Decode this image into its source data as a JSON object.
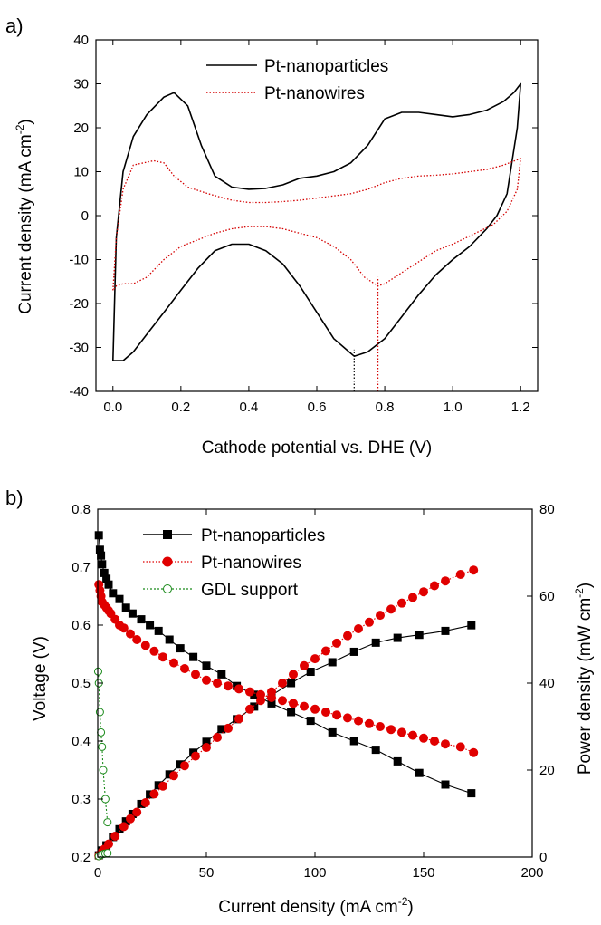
{
  "chart_data": [
    {
      "type": "line",
      "panel_label": "a)",
      "xlabel": "Cathode potential vs. DHE (V)",
      "ylabel": "Current density (mA cm",
      "ylabel_sup": "-2",
      "ylabel_end": ")",
      "xlim": [
        -0.05,
        1.25
      ],
      "ylim": [
        -40,
        40
      ],
      "xticks": [
        0.0,
        0.2,
        0.4,
        0.6,
        0.8,
        1.0,
        1.2
      ],
      "yticks": [
        -40,
        -30,
        -20,
        -10,
        0,
        10,
        20,
        30,
        40
      ],
      "xtick_labels": [
        "0.0",
        "0.2",
        "0.4",
        "0.6",
        "0.8",
        "1.0",
        "1.2"
      ],
      "ytick_labels": [
        "-40",
        "-30",
        "-20",
        "-10",
        "0",
        "10",
        "20",
        "30",
        "40"
      ],
      "legend": "top-right",
      "series": [
        {
          "name": "Pt-nanoparticles",
          "color": "#000000",
          "style": "solid",
          "x": [
            0.0,
            0.01,
            0.03,
            0.06,
            0.1,
            0.15,
            0.18,
            0.22,
            0.26,
            0.3,
            0.35,
            0.4,
            0.45,
            0.5,
            0.55,
            0.6,
            0.65,
            0.7,
            0.75,
            0.8,
            0.85,
            0.9,
            0.95,
            1.0,
            1.05,
            1.1,
            1.15,
            1.18,
            1.2,
            1.19,
            1.16,
            1.13,
            1.1,
            1.05,
            1.0,
            0.95,
            0.9,
            0.85,
            0.8,
            0.75,
            0.71,
            0.65,
            0.6,
            0.55,
            0.5,
            0.45,
            0.4,
            0.35,
            0.3,
            0.25,
            0.2,
            0.15,
            0.1,
            0.06,
            0.03,
            0.01,
            0.0
          ],
          "y": [
            -33,
            -5,
            10,
            18,
            23,
            27,
            28,
            25,
            16,
            9,
            6.5,
            6,
            6.2,
            7,
            8.5,
            9,
            10,
            12,
            16,
            22,
            23.5,
            23.5,
            23,
            22.5,
            23,
            24,
            26,
            28,
            30,
            20,
            5,
            0,
            -3,
            -7,
            -10,
            -13.5,
            -18,
            -23,
            -28,
            -31,
            -32,
            -28,
            -22,
            -16,
            -11,
            -8,
            -6.5,
            -6.5,
            -8,
            -12,
            -17,
            -22,
            -27,
            -31,
            -33,
            -33,
            -33
          ]
        },
        {
          "name": "Pt-nanowires",
          "color": "#d40000",
          "style": "dotted",
          "x": [
            0.0,
            0.01,
            0.03,
            0.06,
            0.09,
            0.12,
            0.15,
            0.18,
            0.22,
            0.28,
            0.35,
            0.4,
            0.45,
            0.5,
            0.55,
            0.6,
            0.65,
            0.7,
            0.75,
            0.8,
            0.85,
            0.9,
            0.95,
            1.0,
            1.05,
            1.1,
            1.15,
            1.2,
            1.19,
            1.16,
            1.12,
            1.08,
            1.04,
            1.0,
            0.95,
            0.9,
            0.85,
            0.8,
            0.78,
            0.74,
            0.7,
            0.65,
            0.6,
            0.55,
            0.5,
            0.45,
            0.4,
            0.35,
            0.3,
            0.25,
            0.2,
            0.15,
            0.1,
            0.06,
            0.03,
            0.01,
            0.0
          ],
          "y": [
            -17,
            -5,
            6,
            11.5,
            12,
            12.5,
            12,
            9,
            6.5,
            5,
            3.5,
            3,
            3,
            3.2,
            3.5,
            4,
            4.5,
            5,
            6,
            7.5,
            8.5,
            9,
            9.2,
            9.5,
            10,
            10.5,
            11.5,
            13,
            6,
            1,
            -2,
            -3.5,
            -5,
            -6.5,
            -8,
            -10.5,
            -13,
            -15.5,
            -16,
            -14,
            -10,
            -7,
            -5,
            -4,
            -3,
            -2.5,
            -2.5,
            -3,
            -4,
            -5.5,
            -7,
            -10,
            -14,
            -15.5,
            -15.5,
            -16,
            -17
          ]
        }
      ],
      "markers": [
        {
          "x": 0.71,
          "y_from": -40,
          "y_to": -30.5,
          "color": "#000000"
        },
        {
          "x": 0.78,
          "y_from": -40,
          "y_to": -14,
          "color": "#d40000"
        }
      ]
    },
    {
      "type": "line",
      "panel_label": "b)",
      "xlabel": "Current density (mA cm",
      "xlabel_sup": "-2",
      "xlabel_end": ")",
      "ylabel": "Voltage (V)",
      "y2label": "Power density (mW cm",
      "y2label_sup": "-2",
      "y2label_end": ")",
      "xlim": [
        0,
        200
      ],
      "ylim": [
        0.2,
        0.8
      ],
      "y2lim": [
        0,
        80
      ],
      "xticks": [
        0,
        50,
        100,
        150,
        200
      ],
      "yticks": [
        0.2,
        0.3,
        0.4,
        0.5,
        0.6,
        0.7,
        0.8
      ],
      "y2ticks": [
        0,
        20,
        40,
        60,
        80
      ],
      "xtick_labels": [
        "0",
        "50",
        "100",
        "150",
        "200"
      ],
      "ytick_labels": [
        "0.2",
        "0.3",
        "0.4",
        "0.5",
        "0.6",
        "0.7",
        "0.8"
      ],
      "y2tick_labels": [
        "0",
        "20",
        "40",
        "60",
        "80"
      ],
      "legend": "top-center",
      "series": [
        {
          "name": "Pt-nanoparticles",
          "color": "#000000",
          "marker": "square-filled",
          "axis": "left",
          "x": [
            0.5,
            1,
            1.5,
            2,
            3,
            4,
            5,
            7,
            10,
            13,
            16,
            20,
            24,
            28,
            33,
            38,
            44,
            50,
            57,
            64,
            72,
            80,
            89,
            98,
            108,
            118,
            128,
            138,
            148,
            160,
            172
          ],
          "y": [
            0.755,
            0.73,
            0.72,
            0.705,
            0.69,
            0.68,
            0.67,
            0.655,
            0.645,
            0.63,
            0.62,
            0.61,
            0.6,
            0.59,
            0.575,
            0.56,
            0.545,
            0.53,
            0.515,
            0.495,
            0.48,
            0.465,
            0.45,
            0.435,
            0.415,
            0.4,
            0.385,
            0.365,
            0.345,
            0.325,
            0.31
          ]
        },
        {
          "name": "Pt-nanoparticles",
          "color": "#000000",
          "marker": "square-filled",
          "axis": "right",
          "x": [
            0.5,
            2,
            4,
            7,
            10,
            13,
            16,
            20,
            24,
            28,
            33,
            38,
            44,
            50,
            57,
            64,
            72,
            80,
            89,
            98,
            108,
            118,
            128,
            138,
            148,
            160,
            172
          ],
          "y": [
            0.4,
            1.5,
            2.7,
            4.6,
            6.4,
            8.2,
            9.9,
            12.2,
            14.4,
            16.5,
            19,
            21.3,
            24,
            26.5,
            29.4,
            31.7,
            34.6,
            37.2,
            40,
            42.6,
            44.8,
            47.2,
            49.3,
            50.4,
            51.1,
            52,
            53.3
          ]
        },
        {
          "name": "Pt-nanowires",
          "color": "#e00000",
          "marker": "circle-filled",
          "axis": "left",
          "x": [
            0.5,
            1,
            1.5,
            2,
            3,
            4,
            5,
            6,
            8,
            10,
            12,
            15,
            18,
            22,
            26,
            30,
            35,
            40,
            45,
            50,
            55,
            60,
            65,
            70,
            75,
            80,
            85,
            90,
            95,
            100,
            105,
            110,
            115,
            120,
            125,
            130,
            135,
            140,
            145,
            150,
            155,
            160,
            167,
            173
          ],
          "y": [
            0.67,
            0.66,
            0.65,
            0.64,
            0.635,
            0.63,
            0.625,
            0.62,
            0.61,
            0.6,
            0.595,
            0.585,
            0.575,
            0.565,
            0.555,
            0.545,
            0.535,
            0.525,
            0.515,
            0.505,
            0.5,
            0.495,
            0.49,
            0.485,
            0.48,
            0.475,
            0.47,
            0.465,
            0.46,
            0.455,
            0.45,
            0.445,
            0.44,
            0.435,
            0.43,
            0.425,
            0.42,
            0.415,
            0.41,
            0.405,
            0.4,
            0.395,
            0.39,
            0.38
          ]
        },
        {
          "name": "Pt-nanowires",
          "color": "#e00000",
          "marker": "circle-filled",
          "axis": "right",
          "x": [
            0.5,
            1,
            2,
            3,
            5,
            8,
            12,
            15,
            18,
            22,
            26,
            30,
            35,
            40,
            45,
            50,
            55,
            60,
            65,
            70,
            75,
            80,
            85,
            90,
            95,
            100,
            105,
            110,
            115,
            120,
            125,
            130,
            135,
            140,
            145,
            150,
            155,
            160,
            167,
            173
          ],
          "y": [
            0.3,
            0.6,
            1.2,
            1.8,
            3,
            4.8,
            7,
            8.8,
            10.3,
            12.5,
            14.5,
            16.3,
            18.7,
            21,
            23.2,
            25.2,
            27.5,
            29.6,
            31.8,
            34,
            36,
            38,
            40,
            42,
            44,
            45.6,
            47.4,
            49.2,
            50.9,
            52.5,
            54,
            55.6,
            57,
            58.4,
            59.7,
            61,
            62.4,
            63.5,
            65,
            66
          ]
        },
        {
          "name": "GDL support",
          "color": "#1a8a1a",
          "marker": "circle-open",
          "axis": "left",
          "x": [
            0.2,
            0.5,
            1,
            1.5,
            2,
            2.5,
            3.5,
            4.5
          ],
          "y": [
            0.52,
            0.5,
            0.45,
            0.415,
            0.39,
            0.35,
            0.3,
            0.26
          ]
        },
        {
          "name": "GDL support",
          "color": "#1a8a1a",
          "marker": "circle-open",
          "axis": "right",
          "x": [
            0.5,
            1.5,
            2.5,
            3.5,
            4.5
          ],
          "y": [
            0.2,
            0.5,
            0.7,
            0.8,
            0.9
          ]
        }
      ]
    }
  ]
}
